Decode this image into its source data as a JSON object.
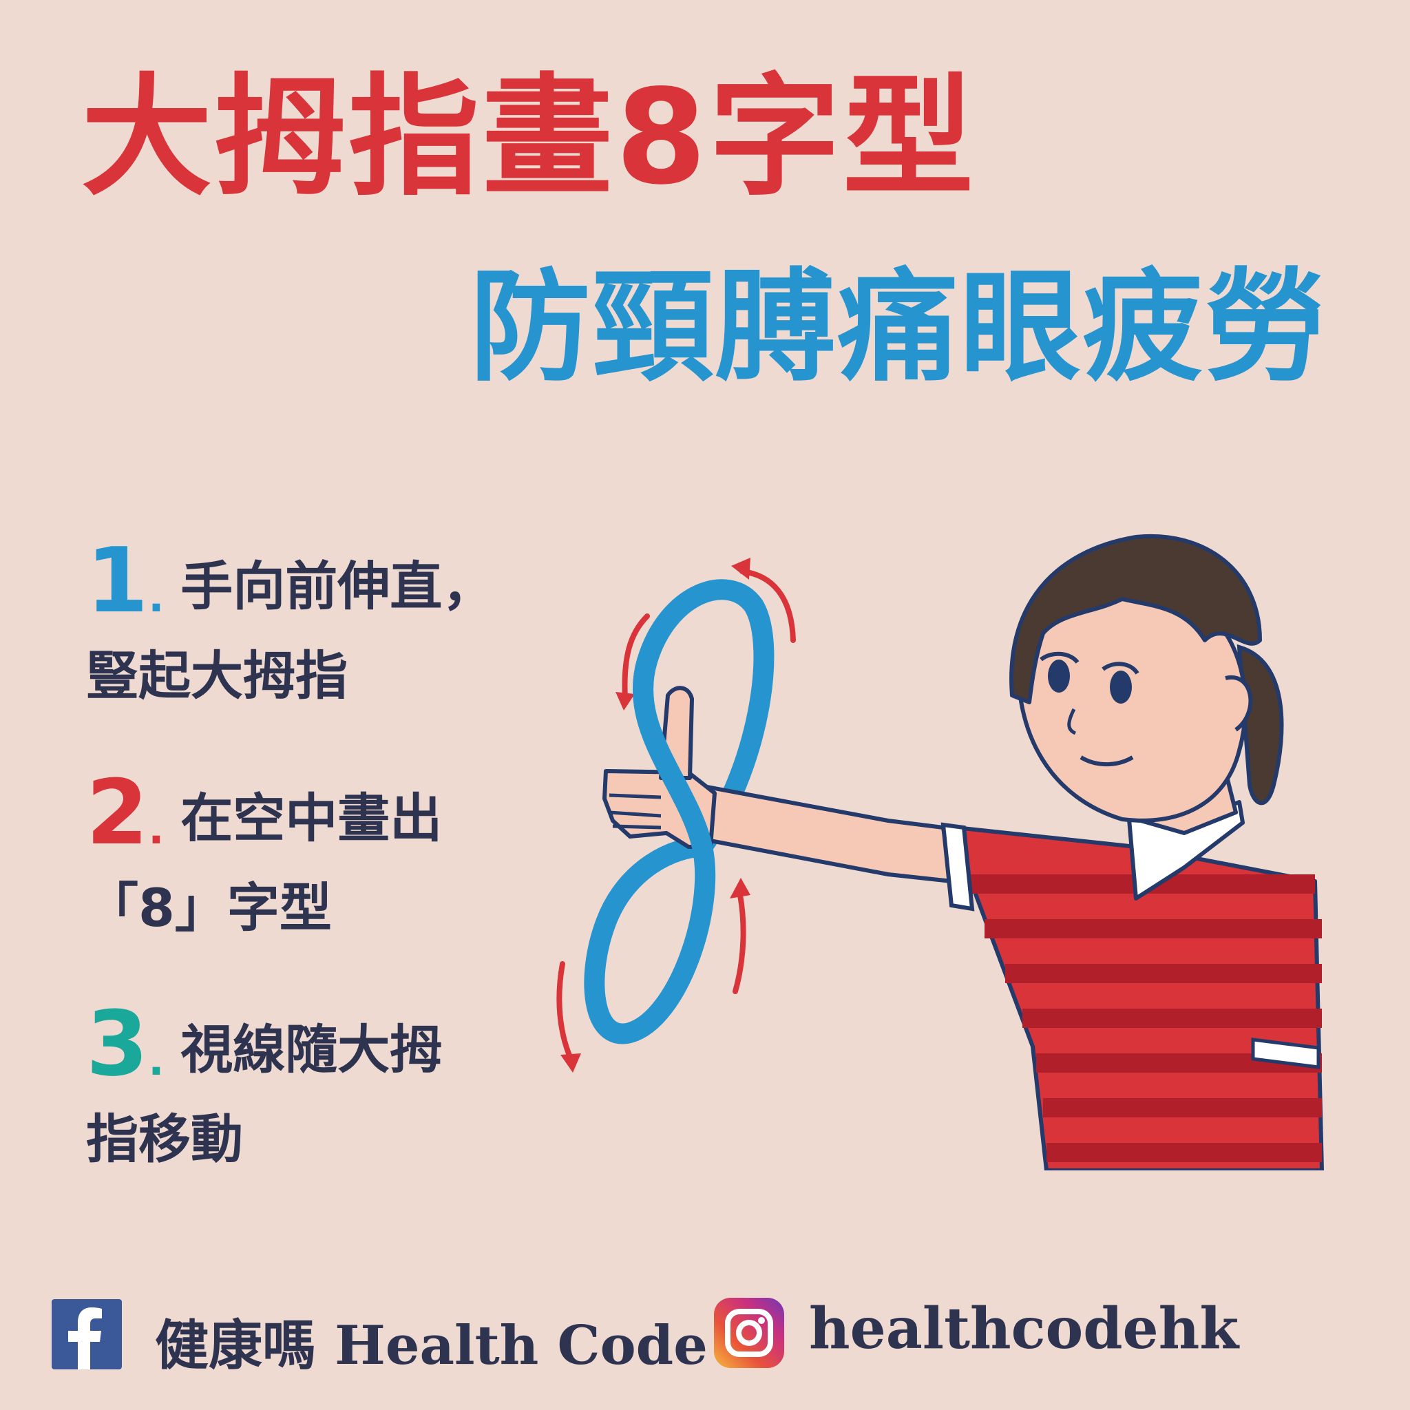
{
  "title": {
    "main": "大拇指畫8字型",
    "sub": "防頸膊痛眼疲勞"
  },
  "steps": [
    {
      "number": "1",
      "dot": ".",
      "line1": "手向前伸直，",
      "line2": "豎起大拇指"
    },
    {
      "number": "2",
      "dot": ".",
      "line1": "在空中畫出",
      "line2": "「8」字型"
    },
    {
      "number": "3",
      "dot": ".",
      "line1": "視線隨大拇",
      "line2": "指移動"
    }
  ],
  "colors": {
    "background": "#efdad2",
    "title_red": "#d8343a",
    "title_blue": "#2594cf",
    "step1": "#2594cf",
    "step2": "#d8343a",
    "step3": "#1aa89a",
    "text_dark": "#2e3350"
  },
  "footer": {
    "facebook": {
      "icon": "facebook-icon",
      "label": "健康嗎 Health Code"
    },
    "instagram": {
      "icon": "instagram-icon",
      "label": "healthcodehk"
    }
  }
}
